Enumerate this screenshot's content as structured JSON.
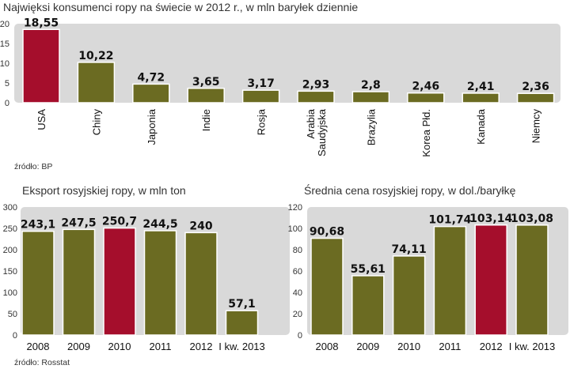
{
  "colors": {
    "bar": "#6b6b22",
    "highlight": "#a50e2c",
    "panel": "#d9d9d9",
    "bar_outline": "#ffffff"
  },
  "chart_data": [
    {
      "type": "bar",
      "title": "Najwięksi konsumenci ropy na świecie w 2012 r., w mln baryłek dziennie",
      "categories": [
        "USA",
        "Chiny",
        "Japonia",
        "Indie",
        "Rosja",
        "Arabia Saudyjska",
        "Brazylia",
        "Korea Płd.",
        "Kanada",
        "Niemcy"
      ],
      "category_lines": [
        [
          "USA"
        ],
        [
          "Chiny"
        ],
        [
          "Japonia"
        ],
        [
          "Indie"
        ],
        [
          "Rosja"
        ],
        [
          "Arabia",
          "Saudyjska"
        ],
        [
          "Brazylia"
        ],
        [
          "Korea Płd."
        ],
        [
          "Kanada"
        ],
        [
          "Niemcy"
        ]
      ],
      "values": [
        18.55,
        10.22,
        4.72,
        3.65,
        3.17,
        2.93,
        2.8,
        2.46,
        2.41,
        2.36
      ],
      "value_labels": [
        "18,55",
        "10,22",
        "4,72",
        "3,65",
        "3,17",
        "2,93",
        "2,8",
        "2,46",
        "2,41",
        "2,36"
      ],
      "highlight_index": 0,
      "ylim": [
        0,
        20
      ],
      "yticks": [
        0,
        5,
        10,
        15,
        20
      ],
      "xlabel": "",
      "ylabel": "",
      "source": "źródło: BP"
    },
    {
      "type": "bar",
      "title": "Eksport rosyjskiej ropy, w mln ton",
      "categories": [
        "2008",
        "2009",
        "2010",
        "2011",
        "2012",
        "I kw. 2013"
      ],
      "values": [
        243.1,
        247.5,
        250.7,
        244.5,
        240,
        57.1
      ],
      "value_labels": [
        "243,1",
        "247,5",
        "250,7",
        "244,5",
        "240",
        "57,1"
      ],
      "highlight_index": 2,
      "ylim": [
        0,
        300
      ],
      "yticks": [
        0,
        50,
        100,
        150,
        200,
        250,
        300
      ],
      "xlabel": "",
      "ylabel": "",
      "source": "źródło: Rosstat"
    },
    {
      "type": "bar",
      "title": "Średnia cena rosyjskiej ropy, w dol./baryłkę",
      "categories": [
        "2008",
        "2009",
        "2010",
        "2011",
        "2012",
        "I kw. 2013"
      ],
      "values": [
        90.68,
        55.61,
        74.11,
        101.74,
        103.14,
        103.08
      ],
      "value_labels": [
        "90,68",
        "55,61",
        "74,11",
        "101,74",
        "103,14",
        "103,08"
      ],
      "highlight_index": 4,
      "ylim": [
        0,
        120
      ],
      "yticks": [
        0,
        20,
        40,
        60,
        80,
        100,
        120
      ],
      "xlabel": "",
      "ylabel": ""
    }
  ]
}
